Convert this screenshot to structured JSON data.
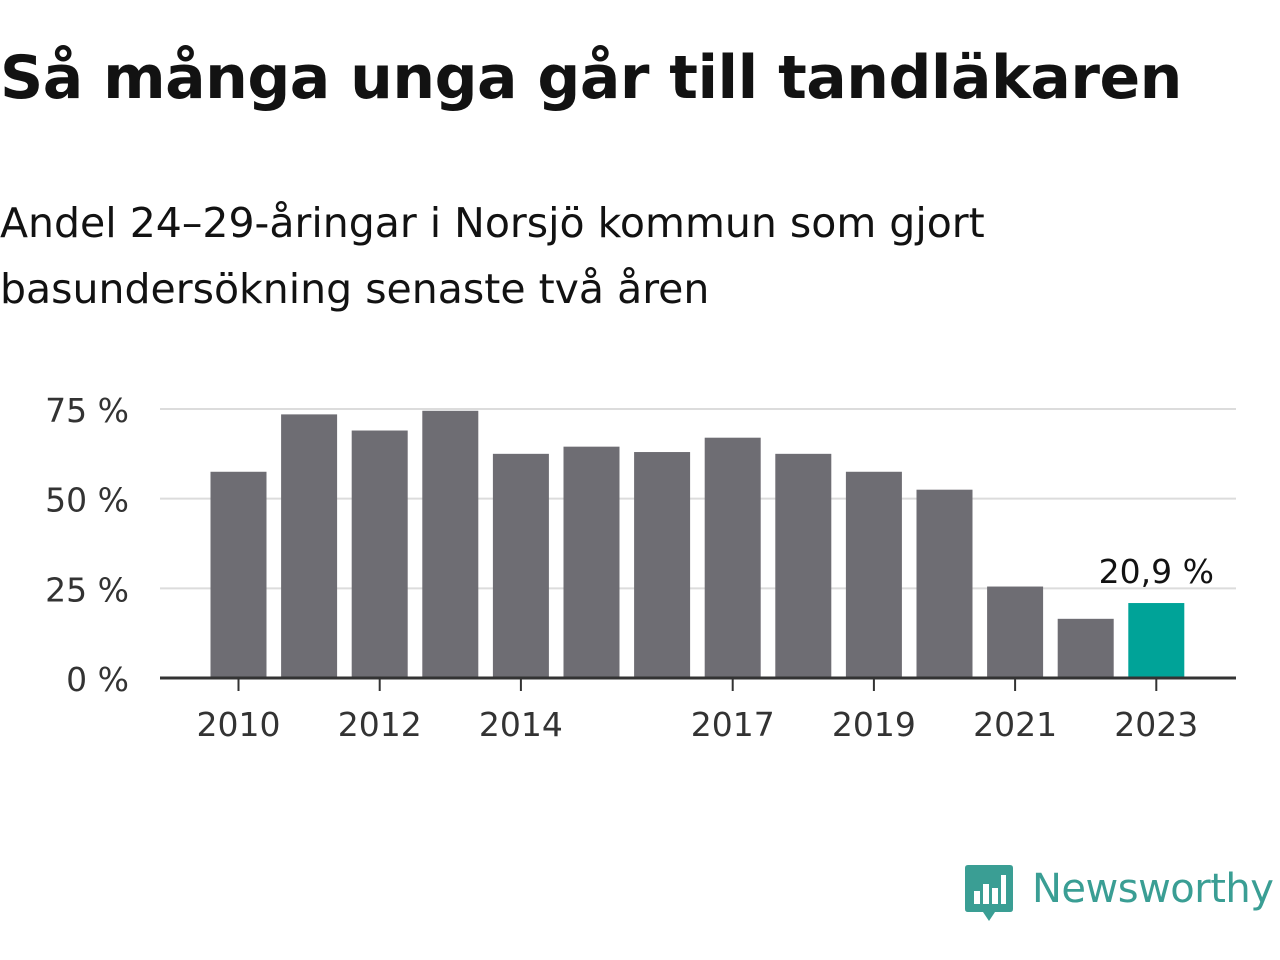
{
  "header": {
    "title": "Så många unga går till tandläkaren",
    "subtitle": "Andel 24–29-åringar i Norsjö kommun som gjort basundersökning senaste två åren"
  },
  "chart_data": {
    "type": "bar",
    "title": "Så många unga går till tandläkaren",
    "subtitle": "Andel 24–29-åringar i Norsjö kommun som gjort basundersökning senaste två åren",
    "xlabel": "",
    "ylabel": "",
    "categories": [
      "2010",
      "2011",
      "2012",
      "2013",
      "2014",
      "2015",
      "2016",
      "2017",
      "2018",
      "2019",
      "2020",
      "2021",
      "2022",
      "2023"
    ],
    "values": [
      57.5,
      73.5,
      69,
      74.5,
      62.5,
      64.5,
      63,
      67,
      62.5,
      57.5,
      52.5,
      25.5,
      16.5,
      20.9
    ],
    "x_tick_labels": [
      "2010",
      "2012",
      "2014",
      "2017",
      "2019",
      "2021",
      "2023"
    ],
    "y_ticks": [
      0,
      25,
      50,
      75
    ],
    "y_tick_labels": [
      "0 %",
      "25 %",
      "50 %",
      "75 %"
    ],
    "ylim": [
      0,
      75
    ],
    "grid": true,
    "highlight_index": 13,
    "annotation": "20,9 %",
    "colors": {
      "bar": "#6e6d73",
      "highlight": "#00a398",
      "grid": "#dcdcdc",
      "axis": "#333333",
      "text": "#121212"
    }
  },
  "brand": {
    "name": "Newsworthy",
    "logo_icon": "bar-chart-speech-bubble-icon",
    "color": "#3a9e94"
  }
}
